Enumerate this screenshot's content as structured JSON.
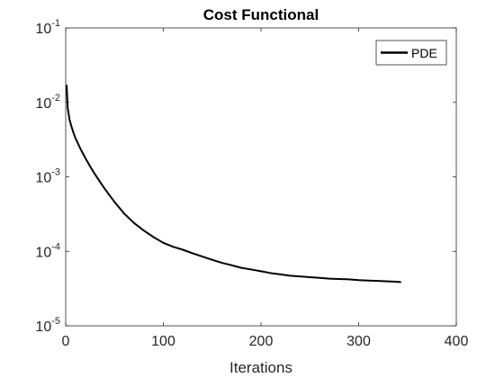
{
  "chart_data": {
    "type": "line",
    "title": "Cost Functional",
    "xlabel": "Iterations",
    "ylabel": "",
    "xlim": [
      0,
      400
    ],
    "ylim": [
      1e-05,
      0.1
    ],
    "yscale": "log",
    "grid": false,
    "legend_position": "top-right",
    "xticks": [
      0,
      100,
      200,
      300,
      400
    ],
    "xtick_labels": [
      "0",
      "100",
      "200",
      "300",
      "400"
    ],
    "yticks": [
      1e-05,
      0.0001,
      0.001,
      0.01,
      0.1
    ],
    "ytick_labels": [
      {
        "base": "10",
        "exp": "-5"
      },
      {
        "base": "10",
        "exp": "-4"
      },
      {
        "base": "10",
        "exp": "-3"
      },
      {
        "base": "10",
        "exp": "-2"
      },
      {
        "base": "10",
        "exp": "-1"
      }
    ],
    "series": [
      {
        "name": "PDE",
        "color": "#000000",
        "x": [
          1,
          2,
          4,
          6,
          8,
          10,
          15,
          20,
          25,
          30,
          40,
          50,
          60,
          70,
          80,
          90,
          100,
          110,
          120,
          130,
          140,
          150,
          160,
          170,
          180,
          190,
          200,
          210,
          220,
          230,
          240,
          250,
          260,
          270,
          280,
          290,
          300,
          310,
          320,
          330,
          340,
          343
        ],
        "y": [
          0.017,
          0.0085,
          0.0058,
          0.0047,
          0.0039,
          0.0033,
          0.0024,
          0.0018,
          0.00138,
          0.00108,
          0.00069,
          0.00046,
          0.00032,
          0.00024,
          0.00019,
          0.000155,
          0.00013,
          0.000115,
          0.000105,
          9.4e-05,
          8.5e-05,
          7.7e-05,
          7e-05,
          6.5e-05,
          6e-05,
          5.7e-05,
          5.4e-05,
          5.1e-05,
          4.9e-05,
          4.7e-05,
          4.6e-05,
          4.5e-05,
          4.4e-05,
          4.3e-05,
          4.25e-05,
          4.2e-05,
          4.1e-05,
          4.05e-05,
          4e-05,
          3.95e-05,
          3.9e-05,
          3.85e-05
        ]
      }
    ]
  }
}
